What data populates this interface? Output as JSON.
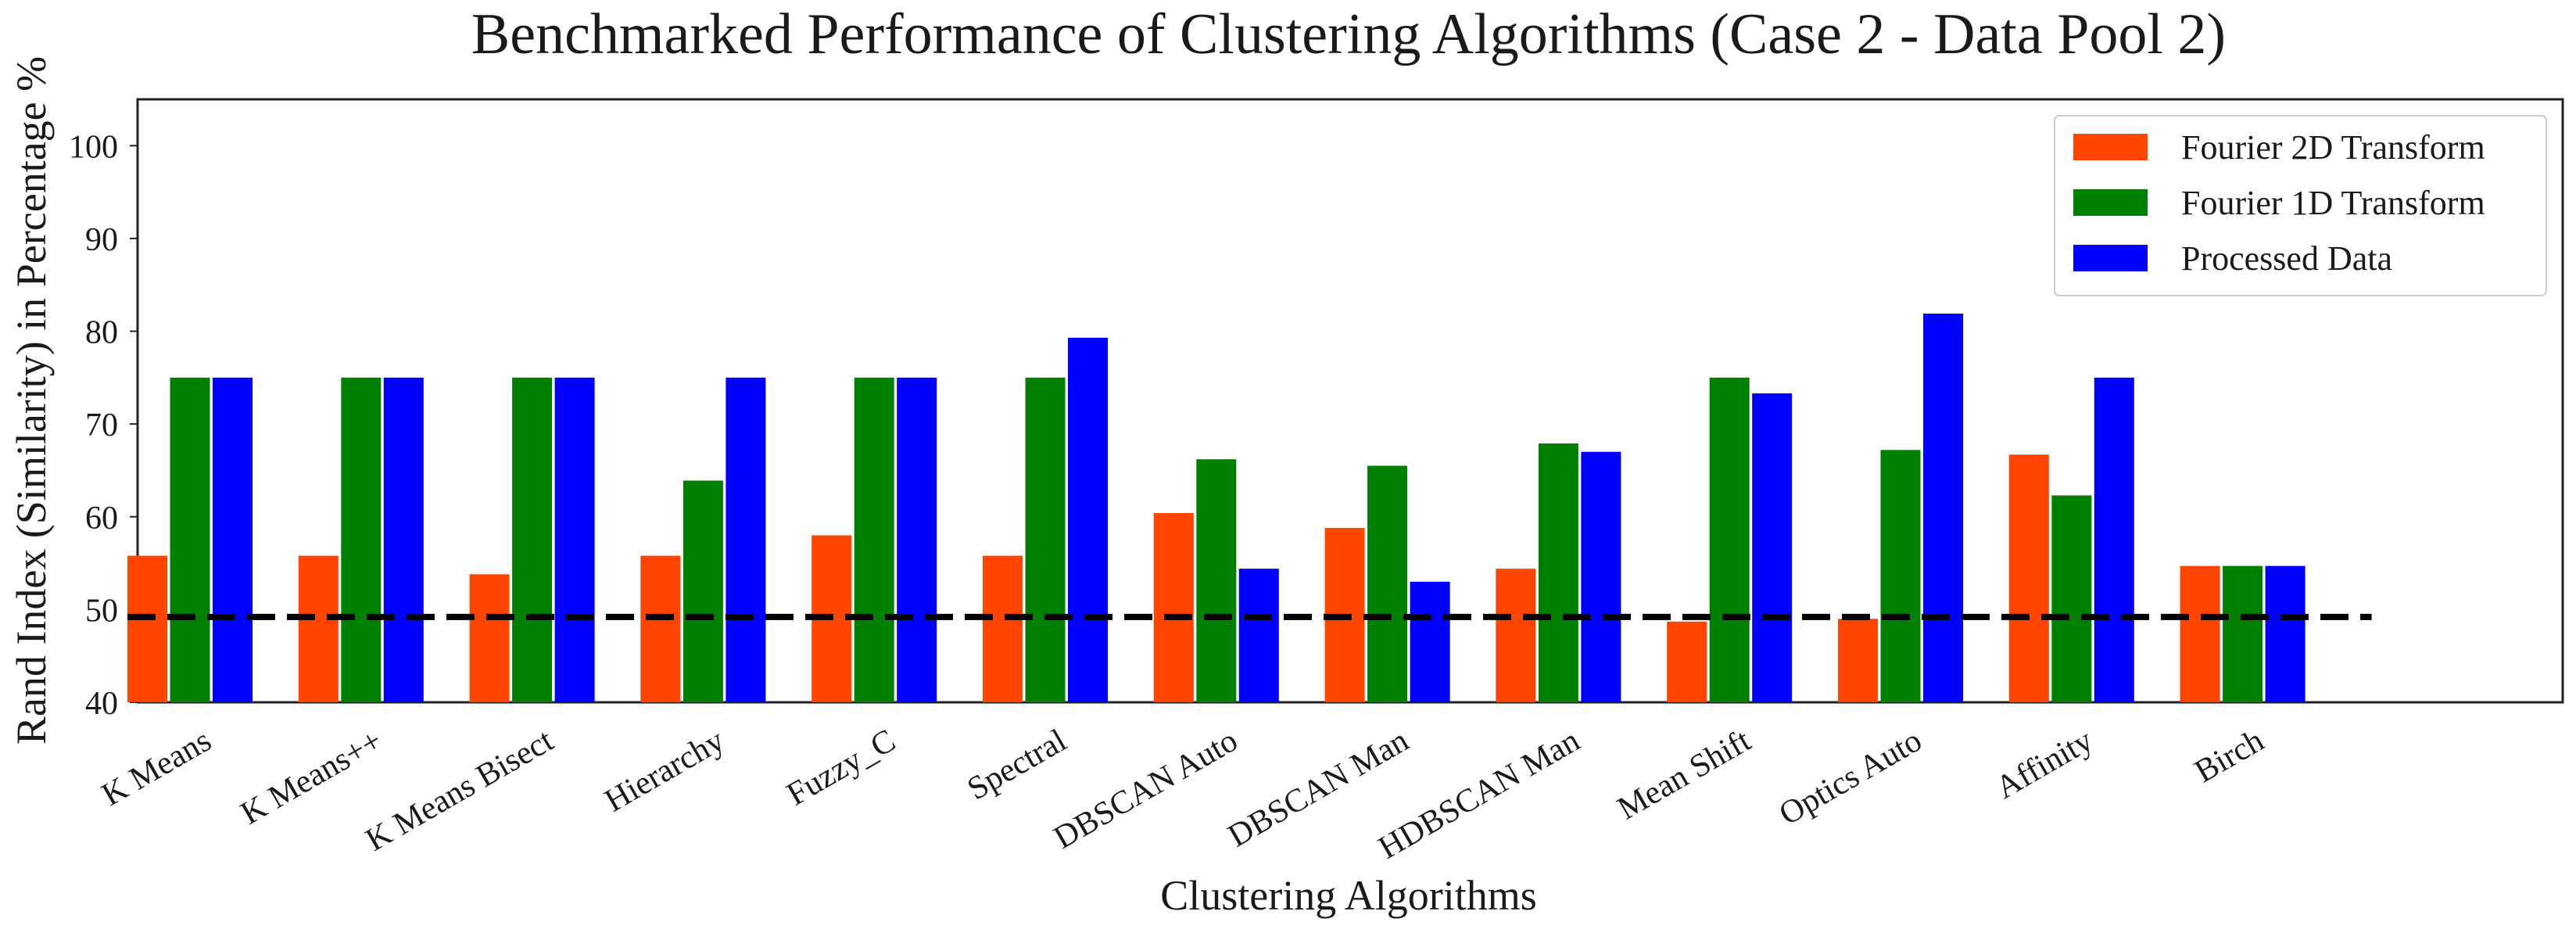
{
  "chart_data": {
    "type": "bar",
    "title": "Benchmarked Performance of Clustering Algorithms (Case 2 - Data Pool 2)",
    "xlabel": "Clustering Algorithms",
    "ylabel": "Rand Index (Similarity) in Percentage %",
    "ylim": [
      40,
      105
    ],
    "yticks": [
      40,
      50,
      60,
      70,
      80,
      90,
      100
    ],
    "categories": [
      "K Means",
      "K Means++",
      "K Means Bisect",
      "Hierarchy",
      "Fuzzy_C",
      "Spectral",
      "DBSCAN Auto",
      "DBSCAN Man",
      "HDBSCAN Man",
      "Mean Shift",
      "Optics Auto",
      "Affinity",
      "Birch"
    ],
    "series": [
      {
        "name": "Fourier 2D Transform",
        "color": "#ff4500",
        "values": [
          55.8,
          55.8,
          53.8,
          55.8,
          58.0,
          55.8,
          60.4,
          58.8,
          54.4,
          48.7,
          49.0,
          66.7,
          54.7
        ]
      },
      {
        "name": "Fourier 1D Transform",
        "color": "#008000",
        "values": [
          75.0,
          75.0,
          75.0,
          63.9,
          75.0,
          75.0,
          66.2,
          65.5,
          67.9,
          75.0,
          67.2,
          62.3,
          54.7
        ]
      },
      {
        "name": "Processed Data",
        "color": "#0000ff",
        "values": [
          75.0,
          75.0,
          75.0,
          75.0,
          75.0,
          79.3,
          54.4,
          53.0,
          67.0,
          73.3,
          81.9,
          75.0,
          54.7
        ]
      }
    ],
    "reference_line": {
      "y": 49.2,
      "style": "dashed",
      "color": "#000000"
    },
    "legend": {
      "placement": "top-right"
    },
    "grid": false
  }
}
